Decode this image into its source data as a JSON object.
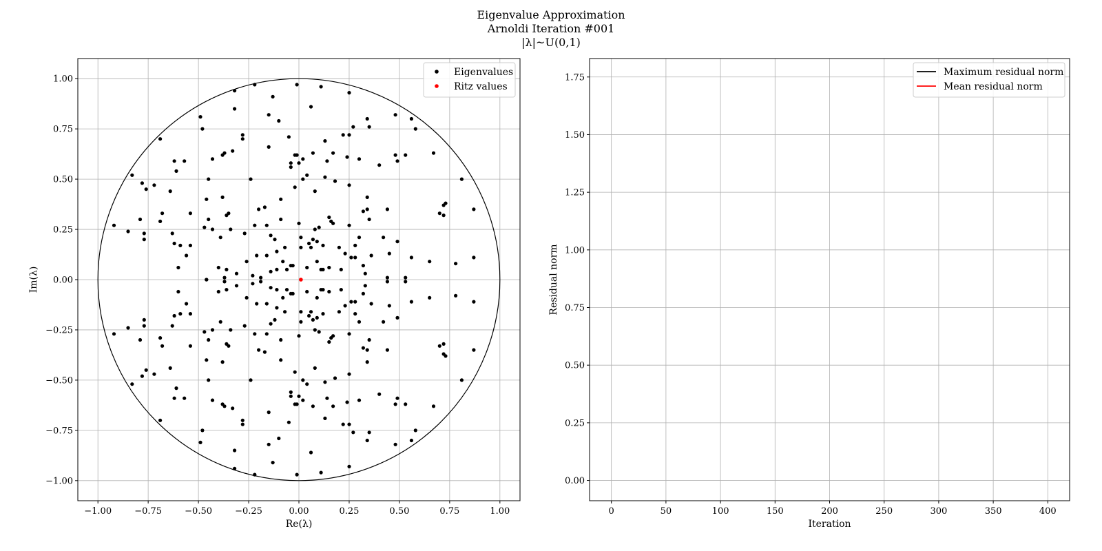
{
  "figure": {
    "title_lines": [
      "Eigenvalue Approximation",
      "Arnoldi Iteration #001",
      "|λ|~U(0,1)"
    ]
  },
  "colors": {
    "eigen": "#000000",
    "ritz": "#ff0000",
    "max_line": "#000000",
    "mean_line": "#ff0000",
    "grid": "#b0b0b0"
  },
  "chart_data": [
    {
      "type": "scatter",
      "xlabel": "Re(λ)",
      "ylabel": "Im(λ)",
      "xlim": [
        -1.1,
        1.1
      ],
      "ylim": [
        -1.1,
        1.1
      ],
      "xticks": [
        -1.0,
        -0.75,
        -0.5,
        -0.25,
        0.0,
        0.25,
        0.5,
        0.75,
        1.0
      ],
      "xtick_labels": [
        "−1.00",
        "−0.75",
        "−0.50",
        "−0.25",
        "0.00",
        "0.25",
        "0.50",
        "0.75",
        "1.00"
      ],
      "yticks": [
        -1.0,
        -0.75,
        -0.5,
        -0.25,
        0.0,
        0.25,
        0.5,
        0.75,
        1.0
      ],
      "ytick_labels": [
        "−1.00",
        "−0.75",
        "−0.50",
        "−0.25",
        "0.00",
        "0.25",
        "0.50",
        "0.75",
        "1.00"
      ],
      "grid": true,
      "legend_position": "top-right",
      "unit_circle": true,
      "series": [
        {
          "name": "Eigenvalues",
          "color": "#000000",
          "points_upper": [
            [
              -0.92,
              0.27
            ],
            [
              -0.85,
              0.24
            ],
            [
              -0.83,
              0.52
            ],
            [
              -0.79,
              0.3
            ],
            [
              -0.78,
              0.48
            ],
            [
              -0.77,
              0.23
            ],
            [
              -0.77,
              0.2
            ],
            [
              -0.76,
              0.45
            ],
            [
              -0.72,
              0.47
            ],
            [
              -0.69,
              0.7
            ],
            [
              -0.69,
              0.29
            ],
            [
              -0.68,
              0.33
            ],
            [
              -0.64,
              0.44
            ],
            [
              -0.63,
              0.23
            ],
            [
              -0.62,
              0.18
            ],
            [
              -0.62,
              0.59
            ],
            [
              -0.61,
              0.54
            ],
            [
              -0.6,
              0.06
            ],
            [
              -0.59,
              0.17
            ],
            [
              -0.57,
              0.59
            ],
            [
              -0.56,
              0.12
            ],
            [
              -0.54,
              0.17
            ],
            [
              -0.54,
              0.33
            ],
            [
              -0.49,
              0.81
            ],
            [
              -0.48,
              0.75
            ],
            [
              -0.47,
              0.26
            ],
            [
              -0.46,
              0.4
            ],
            [
              -0.45,
              0.3
            ],
            [
              -0.45,
              0.5
            ],
            [
              -0.43,
              0.25
            ],
            [
              -0.43,
              0.6
            ],
            [
              -0.4,
              0.06
            ],
            [
              -0.39,
              0.21
            ],
            [
              -0.38,
              0.62
            ],
            [
              -0.38,
              0.41
            ],
            [
              -0.37,
              0.63
            ],
            [
              -0.36,
              0.32
            ],
            [
              -0.35,
              0.33
            ],
            [
              -0.34,
              0.25
            ],
            [
              -0.33,
              0.64
            ],
            [
              -0.32,
              0.94
            ],
            [
              -0.32,
              0.85
            ],
            [
              -0.31,
              0.03
            ],
            [
              -0.28,
              0.7
            ],
            [
              -0.28,
              0.72
            ],
            [
              -0.27,
              0.23
            ],
            [
              -0.26,
              0.09
            ],
            [
              -0.24,
              0.5
            ],
            [
              -0.22,
              0.97
            ],
            [
              -0.22,
              0.27
            ],
            [
              -0.21,
              0.12
            ],
            [
              -0.2,
              0.35
            ],
            [
              -0.19,
              0.01
            ],
            [
              -0.17,
              0.36
            ],
            [
              -0.16,
              0.12
            ],
            [
              -0.16,
              0.27
            ],
            [
              -0.15,
              0.82
            ],
            [
              -0.15,
              0.66
            ],
            [
              -0.14,
              0.22
            ],
            [
              -0.13,
              0.91
            ],
            [
              -0.12,
              0.2
            ],
            [
              -0.11,
              0.14
            ],
            [
              -0.1,
              0.79
            ],
            [
              -0.09,
              0.4
            ],
            [
              -0.09,
              0.3
            ],
            [
              -0.08,
              0.09
            ],
            [
              -0.07,
              0.16
            ],
            [
              -0.06,
              0.05
            ],
            [
              -0.05,
              0.71
            ],
            [
              -0.04,
              0.58
            ],
            [
              -0.04,
              0.56
            ],
            [
              -0.03,
              0.07
            ],
            [
              -0.02,
              0.62
            ],
            [
              -0.02,
              0.46
            ],
            [
              -0.01,
              0.97
            ],
            [
              -0.01,
              0.62
            ],
            [
              0.0,
              0.58
            ],
            [
              0.0,
              0.28
            ],
            [
              0.01,
              0.21
            ],
            [
              0.01,
              0.16
            ],
            [
              0.02,
              0.5
            ],
            [
              0.02,
              0.6
            ],
            [
              0.04,
              0.52
            ],
            [
              0.05,
              0.18
            ],
            [
              0.06,
              0.86
            ],
            [
              0.06,
              0.16
            ],
            [
              0.07,
              0.63
            ],
            [
              0.07,
              0.2
            ],
            [
              0.08,
              0.44
            ],
            [
              0.08,
              0.25
            ],
            [
              0.09,
              0.09
            ],
            [
              0.09,
              0.19
            ],
            [
              0.1,
              0.26
            ],
            [
              0.11,
              0.96
            ],
            [
              0.11,
              0.05
            ],
            [
              0.12,
              0.17
            ],
            [
              0.13,
              0.51
            ],
            [
              0.13,
              0.69
            ],
            [
              0.14,
              0.59
            ],
            [
              0.15,
              0.31
            ],
            [
              0.16,
              0.29
            ],
            [
              0.17,
              0.63
            ],
            [
              0.17,
              0.28
            ],
            [
              0.18,
              0.49
            ],
            [
              0.2,
              0.16
            ],
            [
              0.22,
              0.72
            ],
            [
              0.23,
              0.13
            ],
            [
              0.24,
              0.61
            ],
            [
              0.25,
              0.93
            ],
            [
              0.25,
              0.72
            ],
            [
              0.25,
              0.47
            ],
            [
              0.25,
              0.27
            ],
            [
              0.26,
              0.11
            ],
            [
              0.27,
              0.76
            ],
            [
              0.28,
              0.17
            ],
            [
              0.28,
              0.11
            ],
            [
              0.3,
              0.6
            ],
            [
              0.3,
              0.21
            ],
            [
              0.32,
              0.34
            ],
            [
              0.32,
              0.07
            ],
            [
              0.34,
              0.8
            ],
            [
              0.34,
              0.41
            ],
            [
              0.34,
              0.35
            ],
            [
              0.35,
              0.76
            ],
            [
              0.35,
              0.3
            ],
            [
              0.36,
              0.12
            ],
            [
              0.4,
              0.57
            ],
            [
              0.42,
              0.21
            ],
            [
              0.44,
              0.35
            ],
            [
              0.45,
              0.13
            ],
            [
              0.48,
              0.82
            ],
            [
              0.48,
              0.62
            ],
            [
              0.49,
              0.59
            ],
            [
              0.49,
              0.19
            ],
            [
              0.53,
              0.62
            ],
            [
              0.56,
              0.11
            ],
            [
              0.56,
              0.8
            ],
            [
              0.58,
              0.75
            ],
            [
              0.65,
              0.09
            ],
            [
              0.67,
              0.63
            ],
            [
              0.7,
              0.33
            ],
            [
              0.72,
              0.32
            ],
            [
              0.72,
              0.37
            ],
            [
              0.73,
              0.38
            ],
            [
              0.78,
              0.08
            ],
            [
              0.81,
              0.5
            ],
            [
              0.87,
              0.35
            ],
            [
              0.87,
              0.11
            ],
            [
              -0.46,
              0.0
            ],
            [
              -0.37,
              0.01
            ],
            [
              -0.36,
              0.05
            ],
            [
              -0.23,
              0.02
            ],
            [
              -0.14,
              0.04
            ],
            [
              -0.11,
              0.05
            ],
            [
              -0.04,
              0.07
            ],
            [
              0.04,
              0.06
            ],
            [
              0.12,
              0.05
            ],
            [
              0.15,
              0.06
            ],
            [
              0.21,
              0.05
            ],
            [
              0.33,
              0.03
            ],
            [
              0.44,
              0.01
            ],
            [
              0.53,
              0.01
            ]
          ]
        },
        {
          "name": "Ritz values",
          "color": "#ff0000",
          "points": [
            [
              0.01,
              0.0
            ]
          ]
        }
      ]
    },
    {
      "type": "line",
      "xlabel": "Iteration",
      "ylabel": "Residual norm",
      "xlim": [
        -20,
        420
      ],
      "ylim": [
        -0.088,
        1.83
      ],
      "xticks": [
        0,
        50,
        100,
        150,
        200,
        250,
        300,
        350,
        400
      ],
      "xtick_labels": [
        "0",
        "50",
        "100",
        "150",
        "200",
        "250",
        "300",
        "350",
        "400"
      ],
      "yticks": [
        0.0,
        0.25,
        0.5,
        0.75,
        1.0,
        1.25,
        1.5,
        1.75
      ],
      "ytick_labels": [
        "0.00",
        "0.25",
        "0.50",
        "0.75",
        "1.00",
        "1.25",
        "1.50",
        "1.75"
      ],
      "grid": true,
      "legend_position": "top-right",
      "series": [
        {
          "name": "Maximum residual norm",
          "color": "#000000",
          "values": []
        },
        {
          "name": "Mean residual norm",
          "color": "#ff0000",
          "values": []
        }
      ]
    }
  ]
}
